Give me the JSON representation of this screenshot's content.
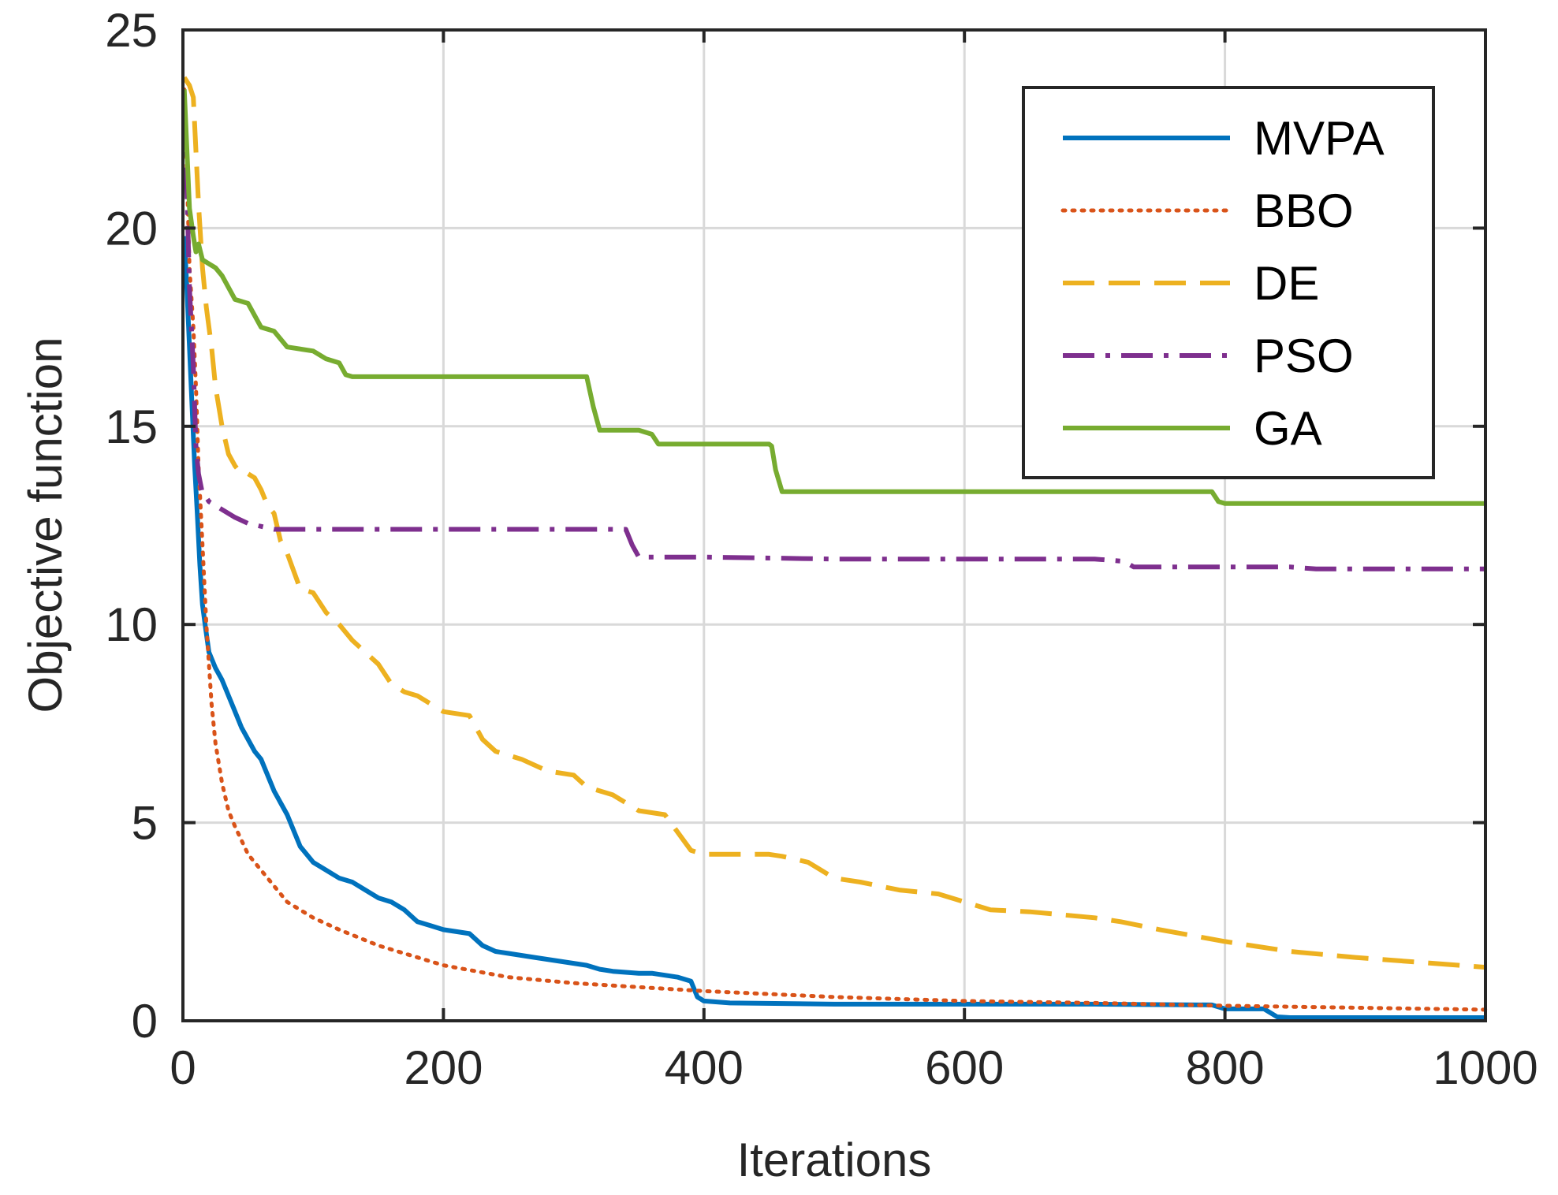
{
  "chart_data": {
    "type": "line",
    "title": "",
    "xlabel": "Iterations",
    "ylabel": "Objective function",
    "xlim": [
      0,
      1000
    ],
    "ylim": [
      0,
      25
    ],
    "xticks": [
      0,
      200,
      400,
      600,
      800,
      1000
    ],
    "yticks": [
      0,
      5,
      10,
      15,
      20,
      25
    ],
    "xtick_labels": [
      "0",
      "200",
      "400",
      "600",
      "800",
      "1000"
    ],
    "ytick_labels": [
      "0",
      "5",
      "10",
      "15",
      "20",
      "25"
    ],
    "grid": true,
    "legend_position": "top-right",
    "series": [
      {
        "name": "MVPA",
        "color": "#0072BD",
        "style": "solid",
        "x": [
          1,
          3,
          5,
          7,
          9,
          11,
          13,
          15,
          17,
          20,
          25,
          30,
          40,
          45,
          55,
          60,
          70,
          75,
          80,
          90,
          100,
          110,
          120,
          130,
          140,
          150,
          160,
          170,
          180,
          190,
          200,
          220,
          230,
          240,
          250,
          270,
          290,
          300,
          310,
          320,
          330,
          350,
          360,
          380,
          390,
          395,
          400,
          420,
          500,
          600,
          700,
          790,
          800,
          830,
          840,
          850,
          900,
          1000
        ],
        "y": [
          19.8,
          18.5,
          17.0,
          15.5,
          14.0,
          12.8,
          11.5,
          10.5,
          10.0,
          9.3,
          8.9,
          8.6,
          7.8,
          7.4,
          6.8,
          6.6,
          5.8,
          5.5,
          5.2,
          4.4,
          4.0,
          3.8,
          3.6,
          3.5,
          3.3,
          3.1,
          3.0,
          2.8,
          2.5,
          2.4,
          2.3,
          2.2,
          1.9,
          1.75,
          1.7,
          1.6,
          1.5,
          1.45,
          1.4,
          1.3,
          1.25,
          1.2,
          1.2,
          1.1,
          1.0,
          0.6,
          0.5,
          0.45,
          0.42,
          0.42,
          0.42,
          0.4,
          0.3,
          0.3,
          0.1,
          0.08,
          0.08,
          0.08
        ]
      },
      {
        "name": "BBO",
        "color": "#D95319",
        "style": "dotted",
        "x": [
          1,
          3,
          5,
          8,
          10,
          12,
          15,
          18,
          20,
          22,
          25,
          30,
          35,
          40,
          50,
          60,
          70,
          80,
          100,
          120,
          150,
          200,
          250,
          300,
          350,
          400,
          500,
          600,
          700,
          800,
          900,
          1000
        ],
        "y": [
          23.5,
          21.5,
          19.0,
          17.5,
          16.0,
          14.0,
          12.0,
          10.0,
          9.0,
          8.0,
          7.0,
          6.0,
          5.3,
          4.9,
          4.2,
          3.8,
          3.4,
          3.0,
          2.6,
          2.3,
          1.9,
          1.4,
          1.1,
          0.95,
          0.85,
          0.75,
          0.6,
          0.5,
          0.45,
          0.38,
          0.33,
          0.28
        ]
      },
      {
        "name": "DE",
        "color": "#EDB120",
        "style": "dashed",
        "x": [
          1,
          5,
          8,
          12,
          15,
          18,
          22,
          25,
          30,
          35,
          40,
          45,
          50,
          55,
          60,
          65,
          70,
          75,
          80,
          90,
          100,
          110,
          120,
          130,
          140,
          150,
          160,
          170,
          180,
          200,
          220,
          230,
          240,
          260,
          280,
          300,
          310,
          330,
          350,
          370,
          390,
          400,
          450,
          460,
          480,
          490,
          500,
          520,
          550,
          580,
          600,
          620,
          650,
          700,
          720,
          750,
          800,
          820,
          850,
          900,
          1000
        ],
        "y": [
          23.8,
          23.6,
          23.3,
          20.6,
          19.0,
          18.0,
          17.0,
          16.0,
          15.0,
          14.3,
          14.0,
          13.8,
          13.8,
          13.7,
          13.4,
          13.0,
          12.8,
          12.1,
          11.8,
          10.9,
          10.8,
          10.3,
          10.0,
          9.6,
          9.3,
          9.0,
          8.5,
          8.3,
          8.2,
          7.8,
          7.7,
          7.1,
          6.8,
          6.6,
          6.3,
          6.2,
          5.9,
          5.7,
          5.3,
          5.2,
          4.3,
          4.2,
          4.2,
          4.15,
          4.0,
          3.8,
          3.6,
          3.5,
          3.3,
          3.2,
          3.0,
          2.8,
          2.75,
          2.6,
          2.5,
          2.3,
          2.0,
          1.9,
          1.75,
          1.6,
          1.35
        ]
      },
      {
        "name": "PSO",
        "color": "#7E2F8E",
        "style": "dashdot",
        "x": [
          1,
          3,
          5,
          8,
          10,
          12,
          15,
          18,
          20,
          30,
          40,
          50,
          70,
          100,
          200,
          300,
          340,
          345,
          350,
          400,
          500,
          600,
          700,
          720,
          725,
          730,
          800,
          850,
          870,
          880,
          1000
        ],
        "y": [
          23.0,
          21.0,
          18.5,
          16.5,
          14.5,
          13.8,
          13.3,
          13.2,
          13.1,
          12.9,
          12.7,
          12.55,
          12.4,
          12.4,
          12.4,
          12.4,
          12.4,
          12.0,
          11.7,
          11.7,
          11.65,
          11.65,
          11.65,
          11.6,
          11.55,
          11.45,
          11.45,
          11.45,
          11.4,
          11.4,
          11.4
        ]
      },
      {
        "name": "GA",
        "color": "#77AC30",
        "style": "solid",
        "x": [
          1,
          3,
          5,
          8,
          10,
          12,
          15,
          20,
          25,
          30,
          40,
          50,
          60,
          70,
          80,
          100,
          110,
          120,
          125,
          130,
          150,
          200,
          250,
          300,
          310,
          315,
          320,
          350,
          360,
          365,
          400,
          450,
          452,
          455,
          460,
          500,
          600,
          700,
          790,
          795,
          800,
          900,
          1000
        ],
        "y": [
          23.5,
          22.0,
          20.5,
          19.8,
          19.4,
          19.6,
          19.2,
          19.1,
          19.0,
          18.8,
          18.2,
          18.1,
          17.5,
          17.4,
          17.0,
          16.9,
          16.7,
          16.6,
          16.3,
          16.25,
          16.25,
          16.25,
          16.25,
          16.25,
          16.25,
          15.5,
          14.9,
          14.9,
          14.8,
          14.55,
          14.55,
          14.55,
          14.5,
          13.9,
          13.35,
          13.35,
          13.35,
          13.35,
          13.35,
          13.1,
          13.05,
          13.05,
          13.05
        ]
      }
    ]
  }
}
